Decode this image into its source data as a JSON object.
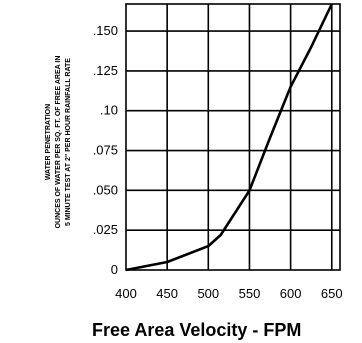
{
  "chart_data": {
    "type": "line",
    "title": "",
    "ylabel_lines": [
      "WATER PENETRATION",
      "OUNCES OF WATER PER SQ. FT. OF FREE AREA IN",
      "5 MINUTE TEST AT 2\" PER HOUR RAINFALL RATE"
    ],
    "xlabel": "Free Area Velocity - FPM",
    "x_ticks": [
      "400",
      "450",
      "500",
      "550",
      "600",
      "650"
    ],
    "x_tick_values": [
      400,
      450,
      500,
      550,
      600,
      650
    ],
    "y_ticks": [
      "0",
      ".025",
      ".050",
      ".075",
      ".10",
      ".125",
      ".150"
    ],
    "y_tick_values": [
      0,
      0.025,
      0.05,
      0.075,
      0.1,
      0.125,
      0.15
    ],
    "xlim": [
      400,
      660
    ],
    "ylim": [
      0,
      0.167
    ],
    "grid": true,
    "series": [
      {
        "x": [
          400,
          450,
          500,
          515,
          550,
          575,
          600,
          625,
          650
        ],
        "y": [
          0,
          0.005,
          0.015,
          0.022,
          0.05,
          0.083,
          0.115,
          0.14,
          0.167
        ]
      }
    ],
    "colors": {
      "line": "#000000",
      "grid": "#000000"
    }
  }
}
